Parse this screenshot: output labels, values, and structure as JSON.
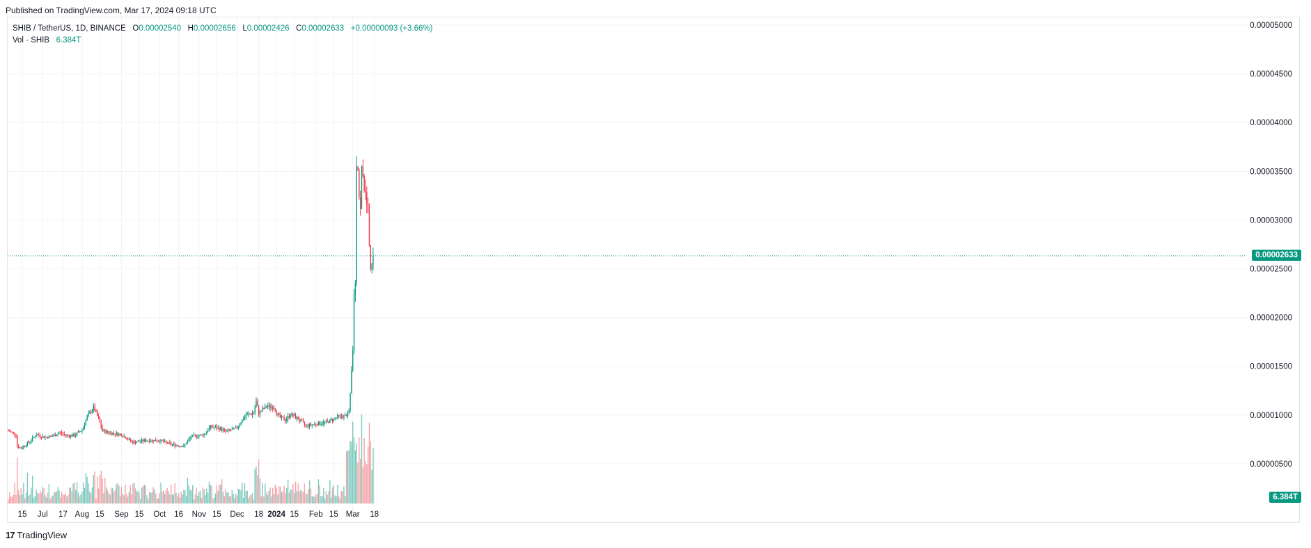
{
  "header": {
    "published": "Published on TradingView.com, Mar 17, 2024 09:18 UTC"
  },
  "legend": {
    "symbol": "SHIB / TetherUS, 1D, BINANCE",
    "o_label": "O",
    "o": "0.00002540",
    "h_label": "H",
    "h": "0.00002656",
    "l_label": "L",
    "l": "0.00002426",
    "c_label": "C",
    "c": "0.00002633",
    "change": "+0.00000093 (+3.66%)",
    "vol_label": "Vol · SHIB",
    "vol": "6.384T"
  },
  "price_tag": "0.00002633",
  "vol_tag": "6.384T",
  "brand": {
    "logo": "17",
    "name": "TradingView"
  },
  "colors": {
    "up": "#089981",
    "down": "#f23645",
    "up_vol": "#7dc9bd",
    "down_vol": "#f5a3a8",
    "grid": "#f0f3fa"
  },
  "chart_data": {
    "type": "candlestick",
    "y_ticks": [
      "0.00005000",
      "0.00004500",
      "0.00004000",
      "0.00003500",
      "0.00003000",
      "0.00002500",
      "0.00002000",
      "0.00001500",
      "0.00001000",
      "0.00000500"
    ],
    "ylim": [
      3e-06,
      5e-05
    ],
    "x_ticks": [
      {
        "label": "15",
        "date": "2023-06-15"
      },
      {
        "label": "Jul",
        "date": "2023-07-01"
      },
      {
        "label": "17",
        "date": "2023-07-17"
      },
      {
        "label": "Aug",
        "date": "2023-08-01"
      },
      {
        "label": "15",
        "date": "2023-08-15"
      },
      {
        "label": "Sep",
        "date": "2023-09-01"
      },
      {
        "label": "15",
        "date": "2023-09-15"
      },
      {
        "label": "Oct",
        "date": "2023-10-01"
      },
      {
        "label": "16",
        "date": "2023-10-16"
      },
      {
        "label": "Nov",
        "date": "2023-11-01"
      },
      {
        "label": "15",
        "date": "2023-11-15"
      },
      {
        "label": "Dec",
        "date": "2023-12-01"
      },
      {
        "label": "18",
        "date": "2023-12-18"
      },
      {
        "label": "2024",
        "date": "2024-01-01",
        "bold": true
      },
      {
        "label": "15",
        "date": "2024-01-15"
      },
      {
        "label": "Feb",
        "date": "2024-02-01"
      },
      {
        "label": "15",
        "date": "2024-02-15"
      },
      {
        "label": "Mar",
        "date": "2024-03-01"
      },
      {
        "label": "18",
        "date": "2024-03-18"
      }
    ],
    "last_close": 2.633e-05,
    "series": [
      {
        "start": "2023-06-04",
        "close": 8.4e-06
      },
      {
        "start": "2023-06-10",
        "close": 8e-06
      },
      {
        "start": "2023-06-11",
        "close": 6.8e-06
      },
      {
        "start": "2023-06-14",
        "close": 6.6e-06
      },
      {
        "start": "2023-06-20",
        "close": 7.2e-06
      },
      {
        "start": "2023-06-26",
        "close": 8e-06
      },
      {
        "start": "2023-07-03",
        "close": 7.7e-06
      },
      {
        "start": "2023-07-10",
        "close": 7.9e-06
      },
      {
        "start": "2023-07-14",
        "close": 8.2e-06
      },
      {
        "start": "2023-07-20",
        "close": 7.9e-06
      },
      {
        "start": "2023-07-26",
        "close": 7.9e-06
      },
      {
        "start": "2023-08-01",
        "close": 8.5e-06
      },
      {
        "start": "2023-08-05",
        "close": 9.8e-06
      },
      {
        "start": "2023-08-10",
        "close": 1.08e-05
      },
      {
        "start": "2023-08-14",
        "close": 9.6e-06
      },
      {
        "start": "2023-08-17",
        "close": 8.4e-06
      },
      {
        "start": "2023-08-22",
        "close": 8.2e-06
      },
      {
        "start": "2023-09-01",
        "close": 8e-06
      },
      {
        "start": "2023-09-10",
        "close": 7.2e-06
      },
      {
        "start": "2023-09-20",
        "close": 7.4e-06
      },
      {
        "start": "2023-10-01",
        "close": 7.4e-06
      },
      {
        "start": "2023-10-10",
        "close": 7e-06
      },
      {
        "start": "2023-10-20",
        "close": 6.8e-06
      },
      {
        "start": "2023-10-26",
        "close": 7.8e-06
      },
      {
        "start": "2023-11-05",
        "close": 8e-06
      },
      {
        "start": "2023-11-10",
        "close": 8.8e-06
      },
      {
        "start": "2023-11-18",
        "close": 8.6e-06
      },
      {
        "start": "2023-11-22",
        "close": 8.3e-06
      },
      {
        "start": "2023-11-30",
        "close": 8.6e-06
      },
      {
        "start": "2023-12-04",
        "close": 9.3e-06
      },
      {
        "start": "2023-12-08",
        "close": 1e-05
      },
      {
        "start": "2023-12-14",
        "close": 1.02e-05
      },
      {
        "start": "2023-12-16",
        "close": 1.14e-05
      },
      {
        "start": "2023-12-18",
        "close": 1.02e-05
      },
      {
        "start": "2023-12-24",
        "close": 1.09e-05
      },
      {
        "start": "2023-12-30",
        "close": 1.08e-05
      },
      {
        "start": "2024-01-03",
        "close": 9.8e-06
      },
      {
        "start": "2024-01-08",
        "close": 9.5e-06
      },
      {
        "start": "2024-01-12",
        "close": 1.01e-05
      },
      {
        "start": "2024-01-18",
        "close": 9.6e-06
      },
      {
        "start": "2024-01-24",
        "close": 8.9e-06
      },
      {
        "start": "2024-02-01",
        "close": 9.1e-06
      },
      {
        "start": "2024-02-10",
        "close": 9.3e-06
      },
      {
        "start": "2024-02-18",
        "close": 9.8e-06
      },
      {
        "start": "2024-02-24",
        "close": 9.9e-06
      },
      {
        "start": "2024-02-27",
        "close": 1.03e-05
      },
      {
        "start": "2024-02-28",
        "close": 1.2e-05
      },
      {
        "start": "2024-02-29",
        "close": 1.45e-05
      },
      {
        "start": "2024-03-01",
        "close": 1.65e-05
      },
      {
        "start": "2024-03-02",
        "close": 2.25e-05
      },
      {
        "start": "2024-03-03",
        "close": 2.35e-05
      },
      {
        "start": "2024-03-04",
        "close": 3.6e-05
      },
      {
        "start": "2024-03-05",
        "close": 3.55e-05
      },
      {
        "start": "2024-03-06",
        "close": 3.25e-05
      },
      {
        "start": "2024-03-07",
        "close": 3.1e-05
      },
      {
        "start": "2024-03-08",
        "close": 3.52e-05
      },
      {
        "start": "2024-03-09",
        "close": 3.5e-05
      },
      {
        "start": "2024-03-10",
        "close": 3.35e-05
      },
      {
        "start": "2024-03-11",
        "close": 3.23e-05
      },
      {
        "start": "2024-03-12",
        "close": 3.22e-05
      },
      {
        "start": "2024-03-13",
        "close": 3.05e-05
      },
      {
        "start": "2024-03-14",
        "close": 2.8e-05
      },
      {
        "start": "2024-03-15",
        "close": 2.54e-05
      },
      {
        "start": "2024-03-16",
        "close": 2.54e-05
      }
    ]
  }
}
